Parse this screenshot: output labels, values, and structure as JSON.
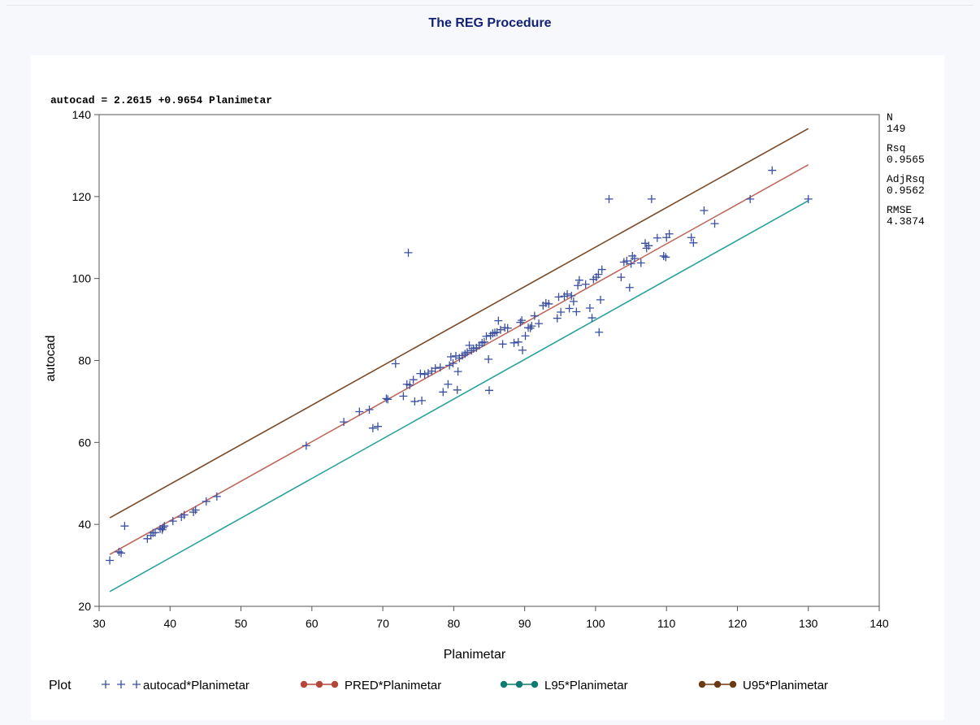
{
  "page": {
    "proc_title": "The REG Procedure"
  },
  "chart_data": {
    "type": "scatter",
    "equation": "autocad = 2.2615 +0.9654 Planimetar",
    "xlabel": "Planimetar",
    "ylabel": "autocad",
    "xlim": [
      30,
      140
    ],
    "ylim": [
      20,
      140
    ],
    "x_ticks": [
      "30",
      "40",
      "50",
      "60",
      "70",
      "80",
      "90",
      "100",
      "110",
      "120",
      "130",
      "140"
    ],
    "y_ticks": [
      "20",
      "40",
      "60",
      "80",
      "100",
      "120",
      "140"
    ],
    "stats": [
      {
        "label": "N",
        "value": "149"
      },
      {
        "label": "Rsq",
        "value": "0.9565"
      },
      {
        "label": "AdjRsq",
        "value": "0.9562"
      },
      {
        "label": "RMSE",
        "value": "4.3874"
      }
    ],
    "legend": {
      "title": "Plot",
      "position": "bottom",
      "entries": [
        {
          "label": "autocad*Planimetar",
          "color": "#3b4fa0",
          "marker": "plus"
        },
        {
          "label": "PRED*Planimetar",
          "color": "#b5473a",
          "marker": "dot"
        },
        {
          "label": "L95*Planimetar",
          "color": "#0f7b72",
          "marker": "dot"
        },
        {
          "label": "U95*Planimetar",
          "color": "#6b3a12",
          "marker": "dot"
        }
      ]
    },
    "series": [
      {
        "name": "autocad*Planimetar",
        "kind": "points",
        "color": "#3b4fa0",
        "points": [
          [
            31.5,
            31.2
          ],
          [
            32.8,
            33.3
          ],
          [
            33.1,
            33.0
          ],
          [
            33.6,
            39.6
          ],
          [
            36.8,
            36.5
          ],
          [
            37.3,
            37.3
          ],
          [
            37.6,
            37.9
          ],
          [
            37.9,
            38.0
          ],
          [
            38.6,
            38.9
          ],
          [
            38.9,
            38.7
          ],
          [
            39.0,
            39.2
          ],
          [
            39.2,
            39.6
          ],
          [
            40.4,
            40.8
          ],
          [
            41.6,
            41.8
          ],
          [
            42.0,
            42.3
          ],
          [
            43.3,
            43.0
          ],
          [
            43.6,
            43.5
          ],
          [
            45.1,
            45.6
          ],
          [
            46.6,
            46.8
          ],
          [
            59.2,
            59.2
          ],
          [
            64.5,
            65.0
          ],
          [
            66.7,
            67.5
          ],
          [
            68.1,
            68.0
          ],
          [
            68.6,
            63.5
          ],
          [
            69.3,
            63.9
          ],
          [
            70.5,
            70.7
          ],
          [
            70.7,
            70.5
          ],
          [
            71.8,
            79.2
          ],
          [
            72.9,
            71.3
          ],
          [
            73.4,
            74.2
          ],
          [
            73.6,
            106.3
          ],
          [
            73.8,
            74.0
          ],
          [
            74.3,
            75.3
          ],
          [
            74.5,
            70.0
          ],
          [
            75.3,
            76.8
          ],
          [
            75.5,
            70.2
          ],
          [
            75.9,
            76.6
          ],
          [
            76.4,
            76.9
          ],
          [
            76.9,
            77.4
          ],
          [
            77.4,
            78.1
          ],
          [
            78.1,
            78.3
          ],
          [
            78.5,
            72.3
          ],
          [
            79.2,
            74.2
          ],
          [
            79.4,
            78.8
          ],
          [
            79.6,
            80.9
          ],
          [
            79.9,
            79.3
          ],
          [
            80.3,
            81.1
          ],
          [
            80.5,
            72.8
          ],
          [
            80.6,
            77.3
          ],
          [
            80.8,
            80.6
          ],
          [
            81.2,
            81.2
          ],
          [
            81.6,
            81.6
          ],
          [
            81.9,
            82.0
          ],
          [
            82.2,
            83.7
          ],
          [
            82.5,
            82.4
          ],
          [
            82.8,
            82.9
          ],
          [
            83.2,
            83.1
          ],
          [
            83.6,
            83.7
          ],
          [
            84.0,
            84.3
          ],
          [
            84.3,
            84.5
          ],
          [
            84.6,
            85.9
          ],
          [
            84.9,
            80.3
          ],
          [
            85.0,
            72.7
          ],
          [
            85.2,
            86.1
          ],
          [
            85.5,
            86.6
          ],
          [
            85.8,
            86.8
          ],
          [
            86.1,
            86.9
          ],
          [
            86.3,
            89.7
          ],
          [
            86.6,
            87.5
          ],
          [
            86.9,
            84.0
          ],
          [
            87.2,
            88.0
          ],
          [
            87.6,
            87.9
          ],
          [
            88.5,
            84.3
          ],
          [
            89.1,
            84.5
          ],
          [
            89.4,
            89.3
          ],
          [
            89.6,
            89.8
          ],
          [
            89.7,
            82.5
          ],
          [
            90.1,
            86.0
          ],
          [
            90.5,
            88.0
          ],
          [
            90.8,
            87.9
          ],
          [
            91.0,
            88.4
          ],
          [
            91.4,
            90.9
          ],
          [
            92.0,
            89.0
          ],
          [
            92.6,
            93.4
          ],
          [
            93.0,
            94.0
          ],
          [
            93.4,
            93.8
          ],
          [
            94.6,
            90.3
          ],
          [
            94.8,
            95.5
          ],
          [
            95.1,
            91.8
          ],
          [
            95.6,
            95.7
          ],
          [
            96.0,
            96.2
          ],
          [
            96.3,
            92.7
          ],
          [
            96.6,
            95.8
          ],
          [
            96.9,
            94.4
          ],
          [
            97.3,
            91.9
          ],
          [
            97.5,
            98.3
          ],
          [
            97.7,
            99.6
          ],
          [
            98.6,
            98.6
          ],
          [
            99.2,
            92.8
          ],
          [
            99.5,
            90.4
          ],
          [
            99.7,
            99.8
          ],
          [
            100.1,
            100.3
          ],
          [
            100.4,
            101.0
          ],
          [
            100.7,
            94.8
          ],
          [
            100.5,
            86.9
          ],
          [
            100.9,
            102.2
          ],
          [
            101.9,
            119.4
          ],
          [
            103.6,
            100.3
          ],
          [
            104.0,
            104.0
          ],
          [
            104.4,
            104.3
          ],
          [
            104.8,
            97.8
          ],
          [
            105.0,
            103.6
          ],
          [
            105.2,
            105.5
          ],
          [
            105.5,
            104.9
          ],
          [
            106.4,
            103.8
          ],
          [
            107.0,
            108.6
          ],
          [
            107.2,
            107.4
          ],
          [
            107.5,
            108.0
          ],
          [
            107.9,
            119.4
          ],
          [
            108.7,
            109.9
          ],
          [
            109.6,
            105.5
          ],
          [
            109.9,
            105.2
          ],
          [
            110.0,
            110.0
          ],
          [
            110.4,
            110.9
          ],
          [
            113.5,
            110.0
          ],
          [
            113.8,
            108.7
          ],
          [
            115.3,
            116.6
          ],
          [
            116.8,
            113.4
          ],
          [
            121.8,
            119.4
          ],
          [
            124.9,
            126.4
          ],
          [
            130.0,
            119.4
          ]
        ]
      },
      {
        "name": "PRED*Planimetar",
        "kind": "line",
        "color": "#c0695d",
        "x": [
          31.5,
          130.0
        ],
        "y": [
          32.67,
          127.76
        ]
      },
      {
        "name": "L95*Planimetar",
        "kind": "line",
        "color": "#2aa39a",
        "x": [
          31.5,
          130.0
        ],
        "y": [
          23.6,
          119.0
        ]
      },
      {
        "name": "U95*Planimetar",
        "kind": "line",
        "color": "#7a4a28",
        "x": [
          31.5,
          130.0
        ],
        "y": [
          41.6,
          136.6
        ]
      }
    ]
  }
}
